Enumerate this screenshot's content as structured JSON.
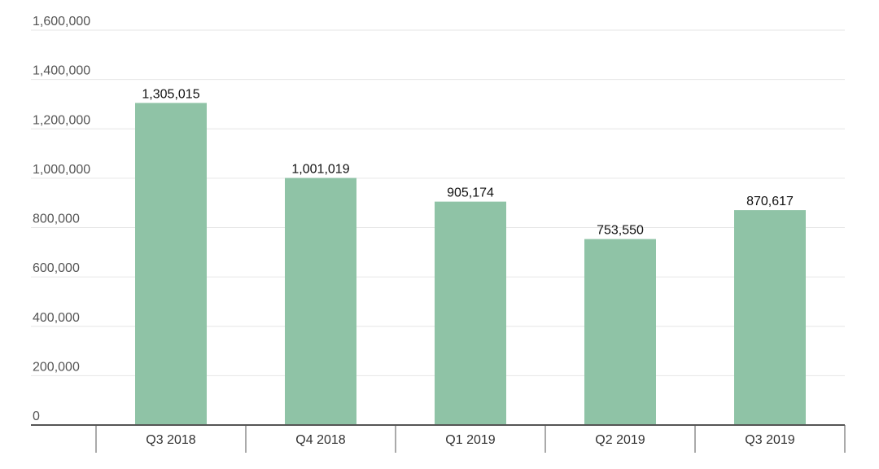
{
  "chart_data": {
    "type": "bar",
    "title": "",
    "xlabel": "",
    "ylabel": "",
    "categories": [
      "Q3 2018",
      "Q4 2018",
      "Q1 2019",
      "Q2 2019",
      "Q3 2019"
    ],
    "values": [
      1305015,
      1001019,
      905174,
      753550,
      870617
    ],
    "value_labels": [
      "1,305,015",
      "1,001,019",
      "905,174",
      "753,550",
      "870,617"
    ],
    "ylim": [
      0,
      1600000
    ],
    "yticks": [
      0,
      200000,
      400000,
      600000,
      800000,
      1000000,
      1200000,
      1400000,
      1600000
    ],
    "ytick_labels": [
      "0",
      "200,000",
      "400,000",
      "600,000",
      "800,000",
      "1,000,000",
      "1,200,000",
      "1,400,000",
      "1,600,000"
    ],
    "grid": true,
    "legend": "none",
    "colors": {
      "bar": "#8fc3a6",
      "grid": "#e6e6e6",
      "axis": "#555555"
    }
  }
}
